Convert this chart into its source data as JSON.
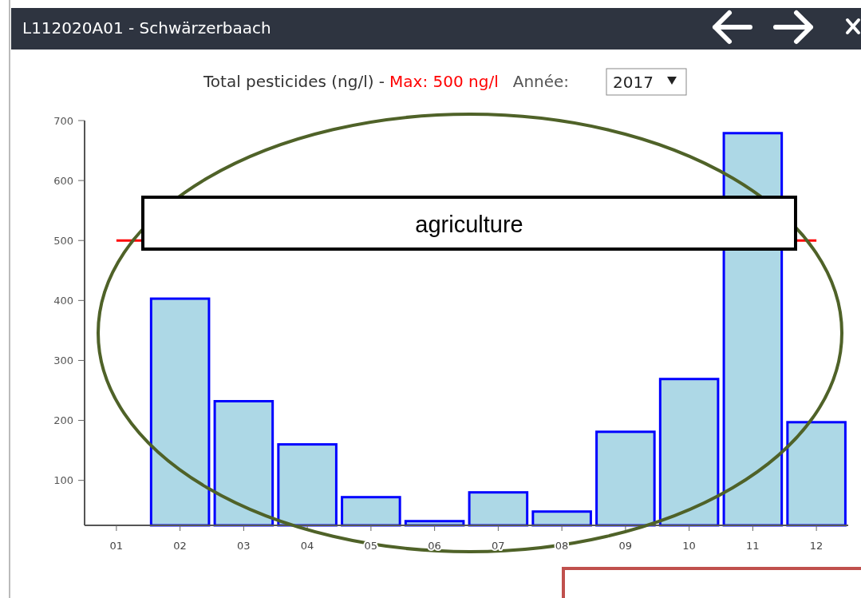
{
  "chart_data": {
    "type": "bar",
    "title": "L112020A01 - Schwärzerbaach",
    "subtitle": "Total pesticides (ng/l) -",
    "categories": [
      "01",
      "02",
      "03",
      "04",
      "05",
      "06",
      "07",
      "08",
      "09",
      "10",
      "11",
      "12"
    ],
    "values": [
      null,
      403,
      232,
      160,
      72,
      32,
      80,
      48,
      181,
      269,
      679,
      197
    ],
    "color": "#add8e6",
    "ylim": [
      25,
      700
    ],
    "yticks": [
      100,
      200,
      300,
      400,
      500,
      600,
      700
    ],
    "ref_lines": [
      {
        "axis": "y",
        "value": 500,
        "label": "Max: 500 ng/l",
        "color": "#ff0000"
      }
    ],
    "annotations": [
      "Année:",
      "2017",
      "agriculture"
    ],
    "grid": false
  }
}
